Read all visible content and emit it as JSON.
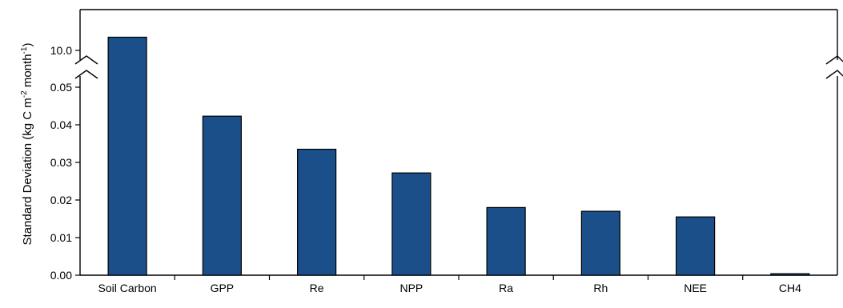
{
  "chart_data": {
    "type": "bar",
    "ylabel_main": "Standard Deviation (kg C m",
    "ylabel_sup1": "-2",
    "ylabel_mid": " month",
    "ylabel_sup2": "-1",
    "ylabel_end": ")",
    "categories": [
      "Soil Carbon",
      "GPP",
      "Re",
      "NPP",
      "Ra",
      "Rh",
      "NEE",
      "CH4"
    ],
    "values": [
      10.3,
      0.0423,
      0.0335,
      0.0272,
      0.018,
      0.017,
      0.0155,
      0.0004
    ],
    "y_ticks": [
      "0.00",
      "0.01",
      "0.02",
      "0.03",
      "0.04",
      "0.05"
    ],
    "y_tick_values": [
      0,
      0.01,
      0.02,
      0.03,
      0.04,
      0.05
    ],
    "y_break_label": "10.0",
    "ylim": [
      0,
      0.05
    ],
    "axis_break": true,
    "bar_color": "#1a4f8a",
    "grid": false
  }
}
